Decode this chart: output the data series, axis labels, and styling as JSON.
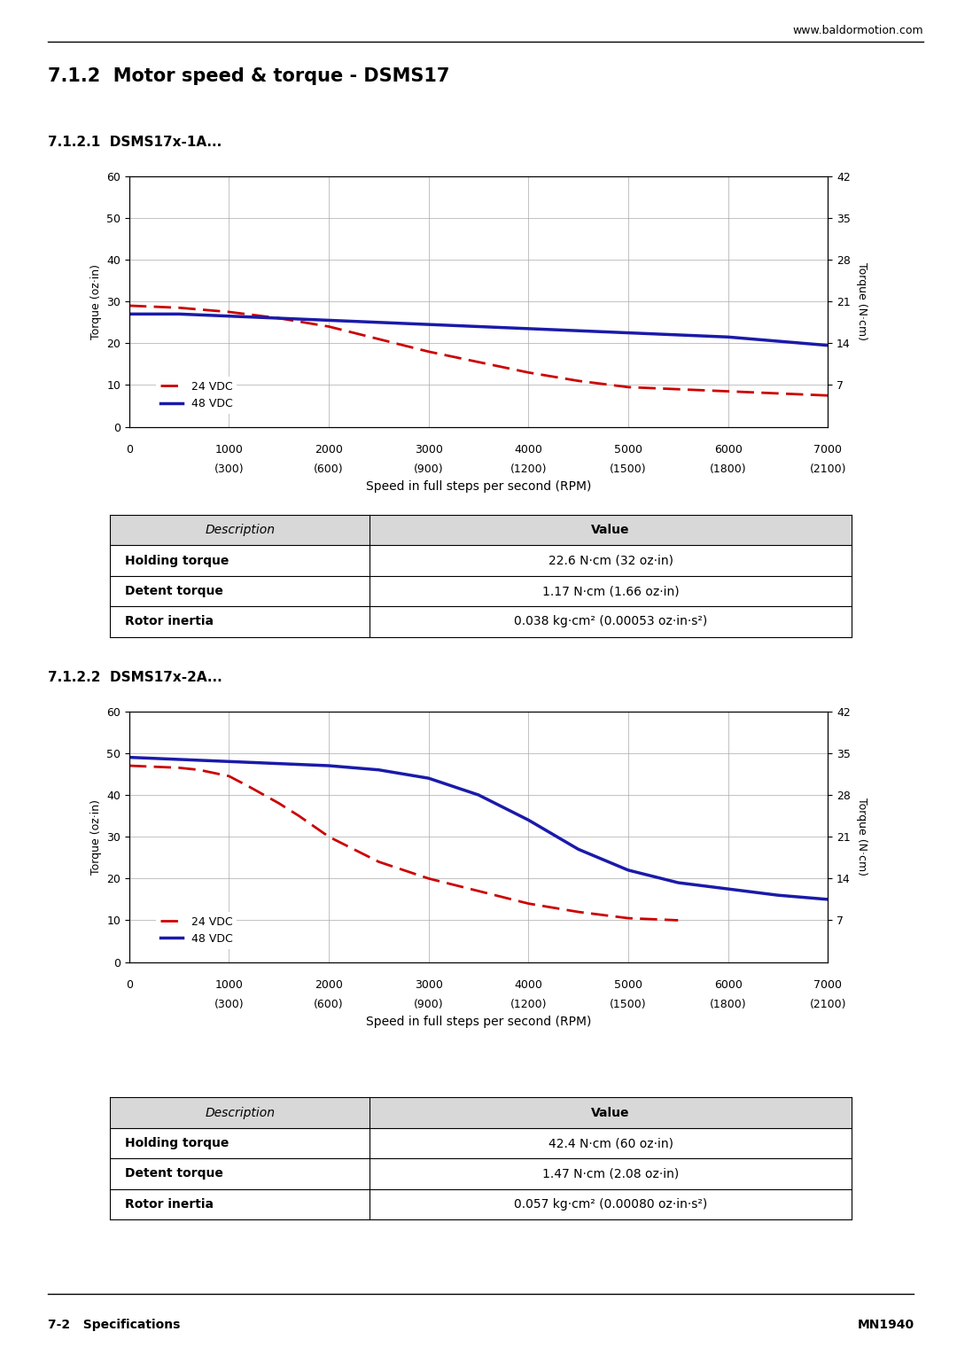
{
  "page_title": "7.1.2  Motor speed & torque - DSMS17",
  "website": "www.baldormotion.com",
  "footer_left": "7-2   Specifications",
  "footer_right": "MN1940",
  "chart1": {
    "subtitle": "7.1.2.1  DSMS17x-1A...",
    "xlabel": "Speed in full steps per second (RPM)",
    "xticks_top": [
      0,
      1000,
      2000,
      3000,
      4000,
      5000,
      6000,
      7000
    ],
    "xticks_rpm": [
      "(300)",
      "(600)",
      "(900)",
      "(1200)",
      "(1500)",
      "(1800)",
      "(2100)"
    ],
    "yleft_label": "Torque (oz·in)",
    "yright_label": "Torque (N·cm)",
    "yleft_ticks": [
      0,
      10,
      20,
      30,
      40,
      50,
      60
    ],
    "yright_ticks": [
      7,
      14,
      21,
      28,
      35,
      42
    ],
    "yleft_lim": [
      0,
      60
    ],
    "yright_lim": [
      0,
      42
    ],
    "24vdc_x": [
      0,
      500,
      1000,
      1500,
      2000,
      2500,
      3000,
      3500,
      4000,
      4500,
      5000,
      5500,
      6000,
      6500,
      7000
    ],
    "24vdc_y": [
      29,
      28.5,
      27.5,
      26,
      24,
      21,
      18,
      15.5,
      13,
      11,
      9.5,
      9,
      8.5,
      8,
      7.5
    ],
    "48vdc_x": [
      0,
      500,
      1000,
      1500,
      2000,
      2500,
      3000,
      3500,
      4000,
      4500,
      5000,
      5500,
      6000,
      6500,
      7000
    ],
    "48vdc_y": [
      27,
      27,
      26.5,
      26,
      25.5,
      25,
      24.5,
      24,
      23.5,
      23,
      22.5,
      22,
      21.5,
      20.5,
      19.5
    ],
    "color_24vdc": "#cc0000",
    "color_48vdc": "#1a1aaa",
    "legend_24": "24 VDC",
    "legend_48": "48 VDC"
  },
  "table1": {
    "header": [
      "Description",
      "Value"
    ],
    "rows": [
      [
        "Holding torque",
        "22.6 N·cm (32 oz·in)"
      ],
      [
        "Detent torque",
        "1.17 N·cm (1.66 oz·in)"
      ],
      [
        "Rotor inertia",
        "0.038 kg·cm² (0.00053 oz·in·s²)"
      ]
    ]
  },
  "chart2": {
    "subtitle": "7.1.2.2  DSMS17x-2A...",
    "xlabel": "Speed in full steps per second (RPM)",
    "xticks_top": [
      0,
      1000,
      2000,
      3000,
      4000,
      5000,
      6000,
      7000
    ],
    "xticks_rpm": [
      "(300)",
      "(600)",
      "(900)",
      "(1200)",
      "(1500)",
      "(1800)",
      "(2100)"
    ],
    "yleft_label": "Torque (oz·in)",
    "yright_label": "Torque (N·cm)",
    "yleft_ticks": [
      0,
      10,
      20,
      30,
      40,
      50,
      60
    ],
    "yright_ticks": [
      7,
      14,
      21,
      28,
      35,
      42
    ],
    "yleft_lim": [
      0,
      60
    ],
    "yright_lim": [
      0,
      42
    ],
    "24vdc_x": [
      0,
      500,
      700,
      1000,
      1200,
      1500,
      1700,
      2000,
      2500,
      3000,
      3500,
      4000,
      4500,
      5000,
      5500
    ],
    "24vdc_y": [
      47,
      46.5,
      46,
      44.5,
      42,
      38,
      35,
      30,
      24,
      20,
      17,
      14,
      12,
      10.5,
      10
    ],
    "48vdc_x": [
      0,
      500,
      1000,
      1500,
      2000,
      2500,
      3000,
      3500,
      4000,
      4500,
      5000,
      5500,
      6000,
      6500,
      7000
    ],
    "48vdc_y": [
      49,
      48.5,
      48,
      47.5,
      47,
      46,
      44,
      40,
      34,
      27,
      22,
      19,
      17.5,
      16,
      15
    ],
    "color_24vdc": "#cc0000",
    "color_48vdc": "#1a1aaa",
    "legend_24": "24 VDC",
    "legend_48": "48 VDC"
  },
  "table2": {
    "header": [
      "Description",
      "Value"
    ],
    "rows": [
      [
        "Holding torque",
        "42.4 N·cm (60 oz·in)"
      ],
      [
        "Detent torque",
        "1.47 N·cm (2.08 oz·in)"
      ],
      [
        "Rotor inertia",
        "0.057 kg·cm² (0.00080 oz·in·s²)"
      ]
    ]
  }
}
